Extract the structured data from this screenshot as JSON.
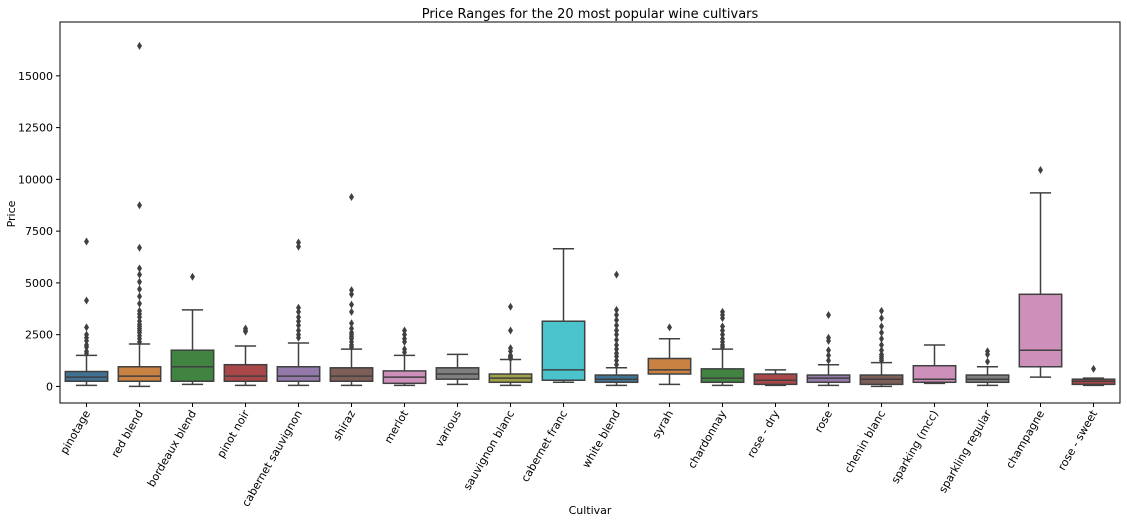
{
  "chart_data": {
    "type": "box",
    "title": "Price Ranges for the 20 most popular wine cultivars",
    "xlabel": "Cultivar",
    "ylabel": "Price",
    "ylim": [
      -800,
      17600
    ],
    "yticks": [
      0,
      2500,
      5000,
      7500,
      10000,
      12500,
      15000
    ],
    "ytick_labels": [
      "0",
      "2500",
      "5000",
      "7500",
      "10000",
      "12500",
      "15000"
    ],
    "grid": false,
    "series": [
      {
        "category": "pinotage",
        "color": "#3274a1",
        "min": 50,
        "q1": 250,
        "median": 450,
        "q3": 720,
        "max": 1500,
        "outliers": [
          1600,
          1700,
          1900,
          2000,
          2200,
          2350,
          2500,
          2850,
          4150,
          7000
        ]
      },
      {
        "category": "red blend",
        "color": "#e1812c",
        "min": 0,
        "q1": 250,
        "median": 500,
        "q3": 950,
        "max": 2050,
        "outliers": [
          2150,
          2300,
          2450,
          2600,
          2700,
          2800,
          2900,
          3000,
          3150,
          3350,
          3500,
          3650,
          4000,
          4350,
          4700,
          5050,
          5400,
          5700,
          6700,
          8750,
          16450
        ]
      },
      {
        "category": "bordeaux blend",
        "color": "#3a923a",
        "min": 100,
        "q1": 250,
        "median": 950,
        "q3": 1750,
        "max": 3700,
        "outliers": [
          5300
        ]
      },
      {
        "category": "pinot noir",
        "color": "#c03d3e",
        "min": 50,
        "q1": 250,
        "median": 500,
        "q3": 1050,
        "max": 1950,
        "outliers": [
          2650,
          2700,
          2800
        ]
      },
      {
        "category": "cabernet sauvignon",
        "color": "#9372b2",
        "min": 50,
        "q1": 250,
        "median": 500,
        "q3": 950,
        "max": 2100,
        "outliers": [
          2350,
          2500,
          2700,
          2950,
          3150,
          3350,
          3600,
          3800,
          6750,
          6950
        ]
      },
      {
        "category": "shiraz",
        "color": "#845b53",
        "min": 50,
        "q1": 250,
        "median": 500,
        "q3": 900,
        "max": 1800,
        "outliers": [
          1900,
          2000,
          2150,
          2300,
          2400,
          2500,
          2600,
          2800,
          3050,
          3600,
          3950,
          4450,
          4650,
          9150
        ]
      },
      {
        "category": "merlot",
        "color": "#d684bd",
        "min": 50,
        "q1": 150,
        "median": 450,
        "q3": 750,
        "max": 1500,
        "outliers": [
          1650,
          1800,
          2150,
          2300,
          2500,
          2700
        ]
      },
      {
        "category": "various",
        "color": "#7f7f7f",
        "min": 100,
        "q1": 350,
        "median": 600,
        "q3": 900,
        "max": 1550,
        "outliers": []
      },
      {
        "category": "sauvignon blanc",
        "color": "#a9aa35",
        "min": 50,
        "q1": 200,
        "median": 400,
        "q3": 600,
        "max": 1300,
        "outliers": [
          1350,
          1400,
          1450,
          1500,
          1700,
          1850,
          2700,
          3850
        ]
      },
      {
        "category": "cabernet franc",
        "color": "#2ed0db",
        "min": 200,
        "q1": 300,
        "median": 800,
        "q3": 3150,
        "max": 6650,
        "outliers": []
      },
      {
        "category": "white blend",
        "color": "#3274a1",
        "min": 50,
        "q1": 200,
        "median": 350,
        "q3": 550,
        "max": 900,
        "outliers": [
          1050,
          1250,
          1450,
          1600,
          1800,
          2000,
          2250,
          2500,
          2700,
          2950,
          3200,
          3450,
          3700,
          5400
        ]
      },
      {
        "category": "syrah",
        "color": "#e1812c",
        "min": 100,
        "q1": 600,
        "median": 800,
        "q3": 1350,
        "max": 2300,
        "outliers": [
          2850
        ]
      },
      {
        "category": "chardonnay",
        "color": "#3a923a",
        "min": 50,
        "q1": 200,
        "median": 400,
        "q3": 850,
        "max": 1800,
        "outliers": [
          1900,
          2000,
          2150,
          2300,
          2500,
          2700,
          2900,
          3300,
          3450,
          3600
        ]
      },
      {
        "category": "rose - dry",
        "color": "#c03d3e",
        "min": 50,
        "q1": 100,
        "median": 300,
        "q3": 600,
        "max": 800,
        "outliers": []
      },
      {
        "category": "rose",
        "color": "#9372b2",
        "min": 50,
        "q1": 200,
        "median": 400,
        "q3": 550,
        "max": 1050,
        "outliers": [
          1250,
          1500,
          1750,
          2200,
          2350,
          3450
        ]
      },
      {
        "category": "chenin blanc",
        "color": "#845b53",
        "min": 0,
        "q1": 100,
        "median": 350,
        "q3": 550,
        "max": 1150,
        "outliers": [
          1250,
          1350,
          1450,
          1550,
          1750,
          2000,
          2300,
          2600,
          2900,
          3300,
          3650
        ]
      },
      {
        "category": "sparking (mcc)",
        "color": "#d684bd",
        "min": 150,
        "q1": 200,
        "median": 350,
        "q3": 1000,
        "max": 2000,
        "outliers": []
      },
      {
        "category": "sparkling regular",
        "color": "#7f7f7f",
        "min": 50,
        "q1": 200,
        "median": 350,
        "q3": 550,
        "max": 950,
        "outliers": [
          1200,
          1550,
          1700
        ]
      },
      {
        "category": "champagne",
        "color": "#d684bd",
        "min": 450,
        "q1": 950,
        "median": 1750,
        "q3": 4450,
        "max": 9350,
        "outliers": [
          10450
        ]
      },
      {
        "category": "rose - sweet",
        "color": "#c03d3e",
        "min": 50,
        "q1": 100,
        "median": 250,
        "q3": 350,
        "max": 400,
        "outliers": [
          850
        ]
      }
    ]
  }
}
